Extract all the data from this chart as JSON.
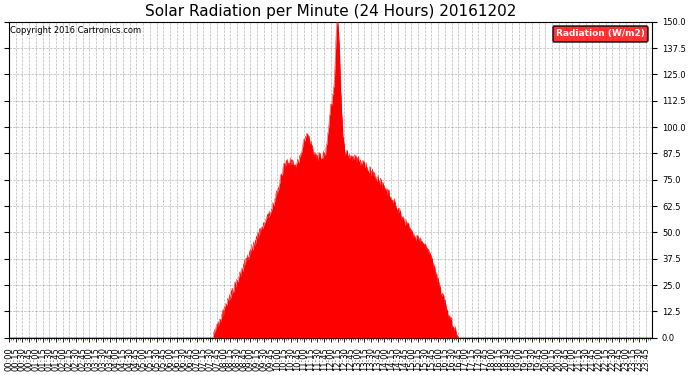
{
  "title": "Solar Radiation per Minute (24 Hours) 20161202",
  "copyright_text": "Copyright 2016 Cartronics.com",
  "legend_label": "Radiation (W/m2)",
  "ylim": [
    0.0,
    150.0
  ],
  "yticks": [
    0.0,
    12.5,
    25.0,
    37.5,
    50.0,
    62.5,
    75.0,
    87.5,
    100.0,
    112.5,
    125.0,
    137.5,
    150.0
  ],
  "bar_color": "#FF0000",
  "legend_bg": "#FF0000",
  "legend_text_color": "#FFFFFF",
  "background_color": "#FFFFFF",
  "grid_color": "#888888",
  "title_fontsize": 11,
  "tick_fontsize": 6,
  "dashed_zero_color": "#FF0000",
  "sunrise_min": 455,
  "sunset_min": 1005,
  "peak_min": 735,
  "peak_val": 150.0,
  "base_max": 88.0,
  "figsize": [
    6.9,
    3.75
  ],
  "dpi": 100
}
